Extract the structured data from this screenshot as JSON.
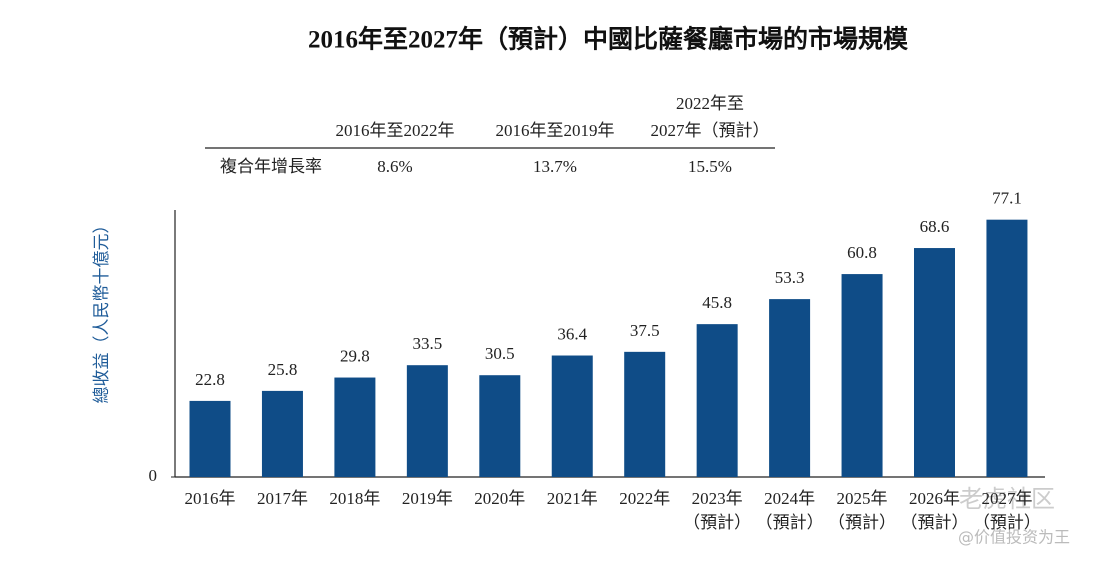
{
  "chart_data": {
    "type": "bar",
    "title": "2016年至2027年（預計）中國比薩餐廳市場的市場規模",
    "y_label": "總收益（人民幣十億元）",
    "categories": [
      "2016年",
      "2017年",
      "2018年",
      "2019年",
      "2020年",
      "2021年",
      "2022年",
      "2023年\n（預計）",
      "2024年\n（預計）",
      "2025年\n（預計）",
      "2026年\n（預計）",
      "2027年\n（預計）"
    ],
    "values": [
      22.8,
      25.8,
      29.8,
      33.5,
      30.5,
      36.4,
      37.5,
      45.8,
      53.3,
      60.8,
      68.6,
      77.1
    ],
    "color": "#0f4c87",
    "ylim": [
      0,
      80
    ],
    "yticks": [
      0
    ],
    "cagr_table": {
      "columns": [
        "2016年至2022年",
        "2016年至2019年",
        "2022年至\n2027年（預計）"
      ],
      "row_label": "複合年增長率",
      "values": [
        "8.6%",
        "13.7%",
        "15.5%"
      ]
    },
    "watermark": [
      "老虎社区",
      "@价值投资为王"
    ]
  }
}
